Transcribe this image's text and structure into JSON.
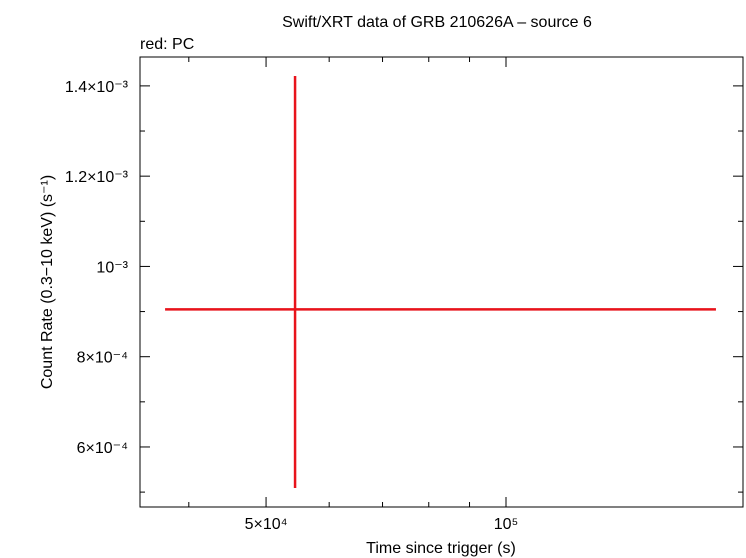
{
  "chart_data": {
    "type": "errorbar",
    "title": "Swift/XRT data of GRB 210626A – source 6",
    "legend": "red: PC",
    "xlabel": "Time since trigger (s)",
    "ylabel": "Count Rate (0.3−10 keV) (s⁻¹)",
    "xlog": true,
    "xlim": [
      34740,
      198300
    ],
    "ylim": [
      0.000467,
      0.001464
    ],
    "xticks": [
      {
        "value": 50000,
        "label": "5×10⁴"
      },
      {
        "value": 100000,
        "label": "10⁵"
      }
    ],
    "xminorticks": [
      40000,
      60000,
      70000,
      80000,
      90000
    ],
    "yticks": [
      {
        "value": 0.0006,
        "label": "6×10⁻⁴"
      },
      {
        "value": 0.0008,
        "label": "8×10⁻⁴"
      },
      {
        "value": 0.001,
        "label": "10⁻³"
      },
      {
        "value": 0.0012,
        "label": "1.2×10⁻³"
      },
      {
        "value": 0.0014,
        "label": "1.4×10⁻³"
      }
    ],
    "yminorticks": [
      0.0005,
      0.0007,
      0.0009,
      0.0011,
      0.0013
    ],
    "series": [
      {
        "color": "#e8131b",
        "x": [
          54370
        ],
        "xerr_minus": [
          17020
        ],
        "xerr_plus": [
          129030
        ],
        "values": [
          0.0009048
        ],
        "yerr_minus": [
          0.0003956
        ],
        "yerr_plus": [
          0.0005172
        ]
      }
    ]
  }
}
